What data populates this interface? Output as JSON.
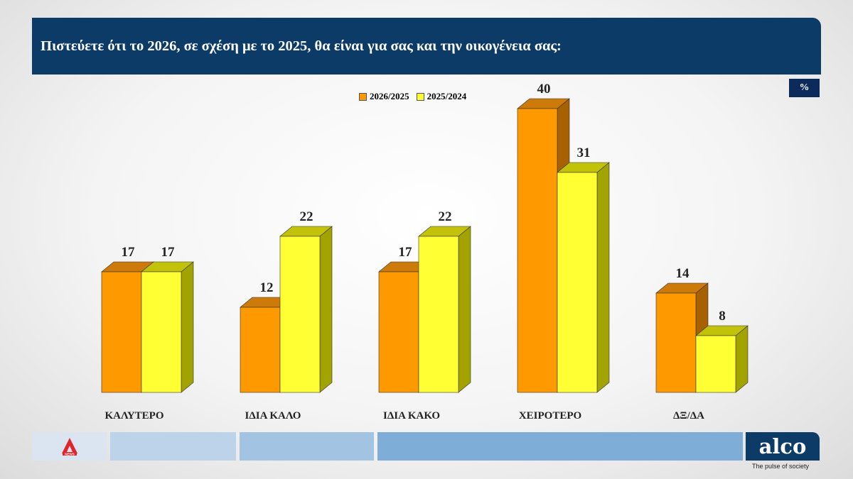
{
  "header": {
    "title": "Πιστεύετε ότι το 2026, σε σχέση με το 2025, θα είναι για σας και την οικογένεια σας:"
  },
  "unit_badge": "%",
  "footer": {
    "brand_logo": "alco",
    "tagline": "The pulse of society",
    "left_logo_text": "NEWS"
  },
  "chart_data": {
    "type": "bar",
    "categories": [
      "ΚΑΛΥΤΕΡΟ",
      "ΙΔΙΑ ΚΑΛΟ",
      "ΙΔΙΑ ΚΑΚΟ",
      "ΧΕΙΡΟΤΕΡΟ",
      "ΔΞ/ΔΑ"
    ],
    "series": [
      {
        "name": "2026/2025",
        "values": [
          17,
          12,
          17,
          40,
          14
        ],
        "color": "#ff9900",
        "top_color": "#cc7a0a",
        "side_color": "#a86100"
      },
      {
        "name": "2025/2024",
        "values": [
          17,
          22,
          22,
          31,
          8
        ],
        "color": "#ffff33",
        "top_color": "#c2c20a",
        "side_color": "#a3a300"
      }
    ],
    "ylim": [
      0,
      40
    ],
    "unit": "%",
    "legend_position": "top-center",
    "grid": false,
    "three_d": true
  }
}
